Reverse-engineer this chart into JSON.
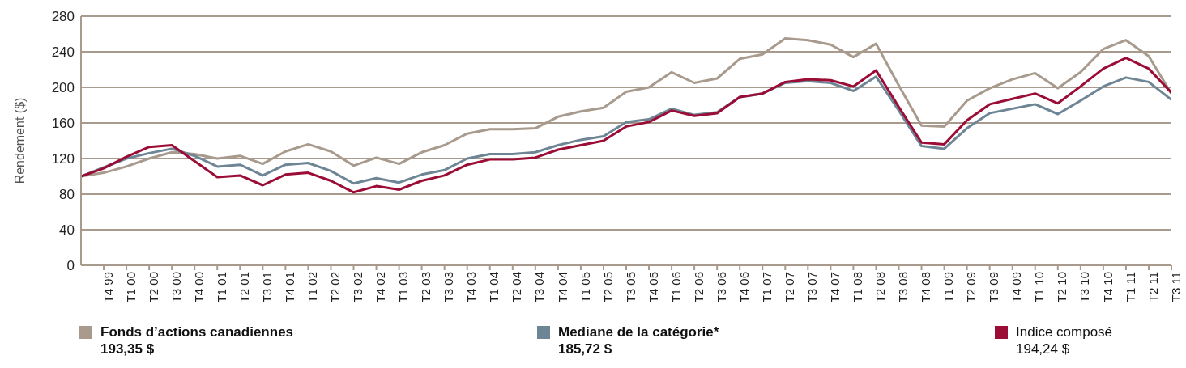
{
  "chart_data": {
    "type": "line",
    "ylabel": "Rendement ($)",
    "categories": [
      null,
      "T4 99",
      "T1 00",
      "T2 00",
      "T3 00",
      "T4 00",
      "T1 01",
      "T2 01",
      "T3 01",
      "T4 01",
      "T1 02",
      "T2 02",
      "T3 02",
      "T4 02",
      "T1 03",
      "T2 03",
      "T3 03",
      "T4 03",
      "T1 04",
      "T2 04",
      "T3 04",
      "T4 04",
      "T1 05",
      "T2 05",
      "T3 05",
      "T4 05",
      "T1 06",
      "T2 06",
      "T3 06",
      "T4 06",
      "T1 07",
      "T2 07",
      "T3 07",
      "T4 07",
      "T1 08",
      "T2 08",
      "T3 08",
      "T4 08",
      "T1 09",
      "T2 09",
      "T3 09",
      "T4 09",
      "T1 10",
      "T2 10",
      "T3 10",
      "T4 10",
      "T1 11",
      "T2 11",
      "T3 11"
    ],
    "ylim": [
      0,
      280
    ],
    "yticks": [
      0,
      40,
      80,
      120,
      160,
      200,
      240,
      280
    ],
    "grid": "y",
    "legend": "bottom",
    "marker": "none",
    "line_style": "solid",
    "series": [
      {
        "name": "Fonds d’actions canadiennes",
        "color": "#a89a8c",
        "values": [
          100,
          104,
          111,
          120,
          127,
          125,
          120,
          123,
          114,
          128,
          136,
          128,
          112,
          121,
          114,
          127,
          135,
          148,
          153,
          153,
          154,
          167,
          173,
          177,
          195,
          200,
          217,
          205,
          210,
          232,
          237,
          255,
          253,
          248,
          234,
          249,
          202,
          157,
          156,
          185,
          199,
          209,
          216,
          199,
          217,
          243,
          253,
          235,
          193
        ]
      },
      {
        "name": "Mediane de la catégorie*",
        "color": "#6e8595",
        "values": [
          100,
          110,
          120,
          126,
          131,
          123,
          111,
          113,
          101,
          113,
          115,
          106,
          92,
          98,
          93,
          102,
          107,
          120,
          125,
          125,
          127,
          135,
          141,
          145,
          161,
          164,
          176,
          169,
          172,
          189,
          193,
          205,
          207,
          205,
          196,
          212,
          174,
          134,
          131,
          154,
          171,
          176,
          181,
          170,
          185,
          201,
          211,
          206,
          186
        ]
      },
      {
        "name": "Indice composé",
        "color": "#9b0d36",
        "values": [
          100,
          109,
          122,
          133,
          135,
          117,
          99,
          101,
          90,
          102,
          104,
          95,
          82,
          89,
          85,
          95,
          101,
          113,
          119,
          119,
          121,
          130,
          135,
          140,
          156,
          161,
          174,
          168,
          171,
          189,
          193,
          206,
          209,
          208,
          201,
          219,
          178,
          138,
          136,
          163,
          181,
          187,
          193,
          182,
          201,
          221,
          233,
          221,
          194
        ]
      }
    ],
    "annotations": [
      "193,35 $",
      "185,72 $",
      "194,24 $"
    ]
  }
}
